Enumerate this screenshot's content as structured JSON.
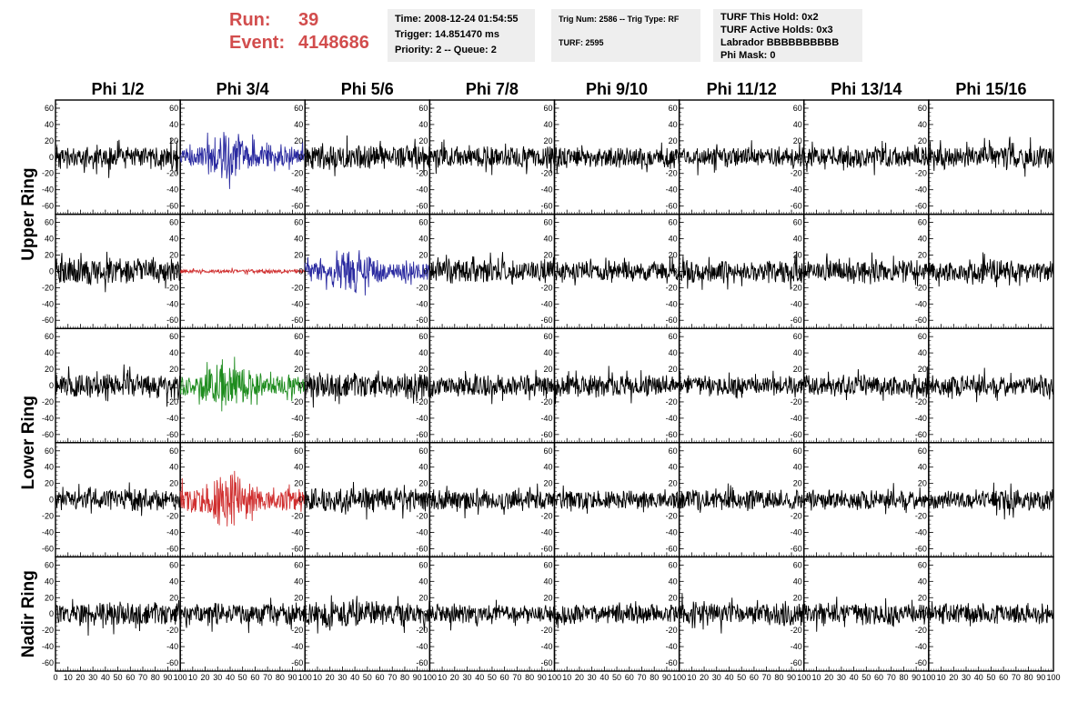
{
  "header": {
    "run_label": "Run:",
    "run_value": "39",
    "event_label": "Event:",
    "event_value": "4148686"
  },
  "info_box_1": {
    "time": "Time: 2008-12-24 01:54:55",
    "trigger": "Trigger: 14.851470 ms",
    "priority": "Priority: 2 -- Queue: 2"
  },
  "info_box_2": {
    "trig": "Trig Num: 2586 -- Trig Type: RF",
    "turf": "TURF: 2595"
  },
  "info_box_3": {
    "this_hold": "TURF This Hold: 0x2",
    "active_holds": "TURF Active Holds: 0x3",
    "labrador": "Labrador BBBBBBBBBB",
    "phi_mask": "Phi Mask: 0"
  },
  "colors": {
    "black": "#000000",
    "blue": "#2a2aa0",
    "red": "#d03030",
    "green": "#1e8c1e",
    "header_red": "#d24d4d",
    "info_bg": "#eeeeee"
  },
  "chart_data": {
    "type": "line",
    "title": "",
    "columns": [
      "Phi 1/2",
      "Phi 3/4",
      "Phi 5/6",
      "Phi 7/8",
      "Phi 9/10",
      "Phi 11/12",
      "Phi 13/14",
      "Phi 15/16"
    ],
    "rows": [
      "Upper Ring",
      "Lower Ring",
      "Nadir Ring"
    ],
    "xlim": [
      0,
      100
    ],
    "ylim": [
      -70,
      70
    ],
    "x_ticks": [
      0,
      10,
      20,
      30,
      40,
      50,
      60,
      70,
      80,
      90,
      100
    ],
    "x_tick_labels_first": [
      "0",
      "10",
      "20",
      "30",
      "40",
      "50",
      "60",
      "70",
      "80",
      "90",
      "100"
    ],
    "x_tick_labels": [
      "10",
      "20",
      "30",
      "40",
      "50",
      "60",
      "70",
      "80",
      "90",
      "100"
    ],
    "y_ticks": [
      -60,
      -40,
      -20,
      0,
      20,
      40,
      60
    ],
    "y_tick_labels": [
      "-60",
      "-40",
      "-20",
      "0",
      "20",
      "40",
      "60"
    ],
    "grid": false,
    "panels": [
      {
        "row": 0,
        "col": 0,
        "color": "black",
        "amplitude": 12,
        "seed": 11
      },
      {
        "row": 0,
        "col": 1,
        "color": "blue",
        "amplitude": 15,
        "seed": 12,
        "burst": true
      },
      {
        "row": 0,
        "col": 2,
        "color": "black",
        "amplitude": 13,
        "seed": 13
      },
      {
        "row": 0,
        "col": 3,
        "color": "black",
        "amplitude": 11,
        "seed": 14
      },
      {
        "row": 0,
        "col": 4,
        "color": "black",
        "amplitude": 11,
        "seed": 15
      },
      {
        "row": 0,
        "col": 5,
        "color": "black",
        "amplitude": 10,
        "seed": 16
      },
      {
        "row": 0,
        "col": 6,
        "color": "black",
        "amplitude": 11,
        "seed": 17
      },
      {
        "row": 0,
        "col": 7,
        "color": "black",
        "amplitude": 12,
        "seed": 18
      },
      {
        "row": 1,
        "col": 0,
        "color": "black",
        "amplitude": 14,
        "seed": 21
      },
      {
        "row": 1,
        "col": 1,
        "color": "red",
        "amplitude": 2,
        "seed": 22
      },
      {
        "row": 1,
        "col": 2,
        "color": "blue",
        "amplitude": 14,
        "seed": 23,
        "burst": true
      },
      {
        "row": 1,
        "col": 3,
        "color": "black",
        "amplitude": 12,
        "seed": 24
      },
      {
        "row": 1,
        "col": 4,
        "color": "black",
        "amplitude": 10,
        "seed": 25
      },
      {
        "row": 1,
        "col": 5,
        "color": "black",
        "amplitude": 12,
        "seed": 26
      },
      {
        "row": 1,
        "col": 6,
        "color": "black",
        "amplitude": 11,
        "seed": 27
      },
      {
        "row": 1,
        "col": 7,
        "color": "black",
        "amplitude": 11,
        "seed": 28
      },
      {
        "row": 2,
        "col": 0,
        "color": "black",
        "amplitude": 12,
        "seed": 31
      },
      {
        "row": 2,
        "col": 1,
        "color": "green",
        "amplitude": 15,
        "seed": 32,
        "burst": true
      },
      {
        "row": 2,
        "col": 2,
        "color": "black",
        "amplitude": 13,
        "seed": 33
      },
      {
        "row": 2,
        "col": 3,
        "color": "black",
        "amplitude": 11,
        "seed": 34
      },
      {
        "row": 2,
        "col": 4,
        "color": "black",
        "amplitude": 11,
        "seed": 35
      },
      {
        "row": 2,
        "col": 5,
        "color": "black",
        "amplitude": 10,
        "seed": 36
      },
      {
        "row": 2,
        "col": 6,
        "color": "black",
        "amplitude": 11,
        "seed": 37
      },
      {
        "row": 2,
        "col": 7,
        "color": "black",
        "amplitude": 11,
        "seed": 38
      },
      {
        "row": 3,
        "col": 0,
        "color": "black",
        "amplitude": 11,
        "seed": 41
      },
      {
        "row": 3,
        "col": 1,
        "color": "red",
        "amplitude": 17,
        "seed": 42,
        "burst": true
      },
      {
        "row": 3,
        "col": 2,
        "color": "black",
        "amplitude": 12,
        "seed": 43
      },
      {
        "row": 3,
        "col": 3,
        "color": "black",
        "amplitude": 11,
        "seed": 44
      },
      {
        "row": 3,
        "col": 4,
        "color": "black",
        "amplitude": 10,
        "seed": 45
      },
      {
        "row": 3,
        "col": 5,
        "color": "black",
        "amplitude": 11,
        "seed": 46
      },
      {
        "row": 3,
        "col": 6,
        "color": "black",
        "amplitude": 10,
        "seed": 47
      },
      {
        "row": 3,
        "col": 7,
        "color": "black",
        "amplitude": 11,
        "seed": 48
      },
      {
        "row": 4,
        "col": 0,
        "color": "black",
        "amplitude": 12,
        "seed": 51
      },
      {
        "row": 4,
        "col": 1,
        "color": "black",
        "amplitude": 11,
        "seed": 52
      },
      {
        "row": 4,
        "col": 2,
        "color": "black",
        "amplitude": 13,
        "seed": 53
      },
      {
        "row": 4,
        "col": 3,
        "color": "black",
        "amplitude": 10,
        "seed": 54
      },
      {
        "row": 4,
        "col": 4,
        "color": "black",
        "amplitude": 10,
        "seed": 55
      },
      {
        "row": 4,
        "col": 5,
        "color": "black",
        "amplitude": 12,
        "seed": 56
      },
      {
        "row": 4,
        "col": 6,
        "color": "black",
        "amplitude": 11,
        "seed": 57
      },
      {
        "row": 4,
        "col": 7,
        "color": "black",
        "amplitude": 11,
        "seed": 58
      }
    ]
  }
}
